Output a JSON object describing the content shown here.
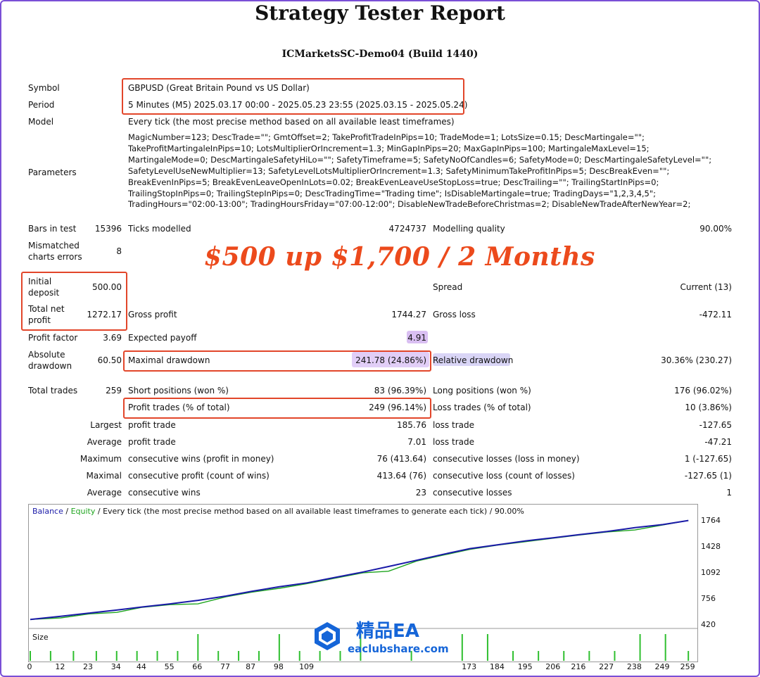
{
  "report": {
    "title": "Strategy Tester Report",
    "server": "ICMarketsSC-Demo04 (Build 1440)"
  },
  "settings": {
    "symbol_label": "Symbol",
    "symbol_value": "GBPUSD (Great Britain Pound vs US Dollar)",
    "period_label": "Period",
    "period_value": "5 Minutes (M5) 2025.03.17 00:00 - 2025.05.23 23:55 (2025.03.15 - 2025.05.24)",
    "model_label": "Model",
    "model_value": "Every tick (the most precise method based on all available least timeframes)",
    "parameters_label": "Parameters",
    "parameters_lines": [
      "MagicNumber=123; DescTrade=\"\"; GmtOffset=2; TakeProfitTradeInPips=10; TradeMode=1; LotsSize=0.15; DescMartingale=\"\";",
      "TakeProfitMartingaleInPips=10; LotsMultiplierOrIncrement=1.3; MinGapInPips=20; MaxGapInPips=100; MartingaleMaxLevel=15;",
      "MartingaleMode=0; DescMartingaleSafetyHiLo=\"\"; SafetyTimeframe=5; SafetyNoOfCandles=6; SafetyMode=0; DescMartingaleSafetyLevel=\"\";",
      "SafetyLevelUseNewMultiplier=13; SafetyLevelLotsMultiplierOrIncrement=1.3; SafetyMinimumTakeProfitInPips=5; DescBreakEven=\"\";",
      "BreakEvenInPips=5; BreakEvenLeaveOpenInLots=0.02; BreakEvenLeaveUseStopLoss=true; DescTrailing=\"\"; TrailingStartInPips=0;",
      "TrailingStopInPips=0; TrailingStepInPips=0; DescTradingTime=\"Trading time\"; IsDisableMartingale=true; TradingDays=\"1,2,3,4,5\";",
      "TradingHours=\"02:00-13:00\"; TradingHoursFriday=\"07:00-12:00\"; DisableNewTradeBeforeChristmas=2; DisableNewTradeAfterNewYear=2;"
    ]
  },
  "stats": {
    "bars_label": "Bars in test",
    "bars_value": "15396",
    "ticks_label": "Ticks modelled",
    "ticks_value": "4724737",
    "quality_label": "Modelling quality",
    "quality_value": "90.00%",
    "mismatch_label_1": "Mismatched",
    "mismatch_label_2": "charts errors",
    "mismatch_value": "8",
    "deposit_label_1": "Initial",
    "deposit_label_2": "deposit",
    "deposit_value": "500.00",
    "spread_label": "Spread",
    "spread_value": "Current (13)",
    "net_label_1": "Total net",
    "net_label_2": "profit",
    "net_value": "1272.17",
    "gross_profit_label": "Gross profit",
    "gross_profit_value": "1744.27",
    "gross_loss_label": "Gross loss",
    "gross_loss_value": "-472.11",
    "pf_label": "Profit factor",
    "pf_value": "3.69",
    "payoff_label": "Expected payoff",
    "payoff_value": "4.91",
    "absdd_label_1": "Absolute",
    "absdd_label_2": "drawdown",
    "absdd_value": "60.50",
    "maxdd_label": "Maximal drawdown",
    "maxdd_value": "241.78 (24.86%)",
    "reldd_label": "Relative drawdown",
    "reldd_value": "30.36% (230.27)",
    "total_trades_label": "Total trades",
    "total_trades_value": "259",
    "short_label": "Short positions (won %)",
    "short_value": "83 (96.39%)",
    "long_label": "Long positions (won %)",
    "long_value": "176 (96.02%)",
    "profit_trades_label": "Profit trades (% of total)",
    "profit_trades_value": "249 (96.14%)",
    "loss_trades_label": "Loss trades (% of total)",
    "loss_trades_value": "10 (3.86%)",
    "largest_label": "Largest",
    "largest_profit_label": "profit trade",
    "largest_profit_value": "185.76",
    "largest_loss_label": "loss trade",
    "largest_loss_value": "-127.65",
    "average_label": "Average",
    "average_profit_label": "profit trade",
    "average_profit_value": "7.01",
    "average_loss_label": "loss trade",
    "average_loss_value": "-47.21",
    "maximum_label": "Maximum",
    "max_wins_label": "consecutive wins (profit in money)",
    "max_wins_value": "76 (413.64)",
    "max_losses_label": "consecutive losses (loss in money)",
    "max_losses_value": "1 (-127.65)",
    "maximal_label": "Maximal",
    "maximal_profit_label": "consecutive profit (count of wins)",
    "maximal_profit_value": "413.64 (76)",
    "maximal_loss_label": "consecutive loss (count of losses)",
    "maximal_loss_value": "-127.65 (1)",
    "avg2_label": "Average",
    "avg_wins_label": "consecutive wins",
    "avg_wins_value": "23",
    "avg_losses_label": "consecutive losses",
    "avg_losses_value": "1"
  },
  "promo_text": "$500 up $1,700 / 2 Months",
  "chart": {
    "legend_balance": "Balance",
    "legend_sep": " / ",
    "legend_equity": "Equity",
    "legend_rest": " / Every tick (the most precise method based on all available least timeframes to generate each tick) / 90.00%",
    "size_label": "Size",
    "y_ticks": [
      "1764",
      "1428",
      "1092",
      "756",
      "420"
    ],
    "x_ticks": [
      "0",
      "12",
      "23",
      "34",
      "44",
      "55",
      "66",
      "77",
      "87",
      "98",
      "109",
      "173",
      "184",
      "195",
      "206",
      "216",
      "227",
      "238",
      "249",
      "259"
    ],
    "colors": {
      "balance": "#1a1aa8",
      "equity": "#1fa51f",
      "size_bars": "#2fbf2f",
      "highlight": "#e2462a"
    }
  },
  "chart_data": {
    "type": "line",
    "title": "",
    "xlabel": "",
    "ylabel": "",
    "x": [
      0,
      12,
      23,
      34,
      44,
      55,
      66,
      77,
      87,
      98,
      109,
      120,
      131,
      141,
      152,
      163,
      173,
      184,
      195,
      206,
      216,
      227,
      238,
      249,
      259
    ],
    "series": [
      {
        "name": "Balance",
        "values": [
          500,
          540,
          580,
          620,
          660,
          700,
          745,
          800,
          860,
          920,
          970,
          1040,
          1110,
          1180,
          1260,
          1340,
          1410,
          1460,
          1510,
          1550,
          1590,
          1630,
          1680,
          1720,
          1772
        ]
      },
      {
        "name": "Equity",
        "values": [
          500,
          520,
          570,
          590,
          655,
          690,
          700,
          790,
          850,
          900,
          960,
          1030,
          1100,
          1120,
          1250,
          1330,
          1400,
          1455,
          1500,
          1545,
          1585,
          1625,
          1650,
          1715,
          1772
        ]
      }
    ],
    "ylim": [
      420,
      1850
    ],
    "xlim": [
      0,
      262
    ],
    "legend": "top-left",
    "grid": false
  },
  "watermark": {
    "title": "精品EA",
    "url": "eaclubshare.com"
  }
}
